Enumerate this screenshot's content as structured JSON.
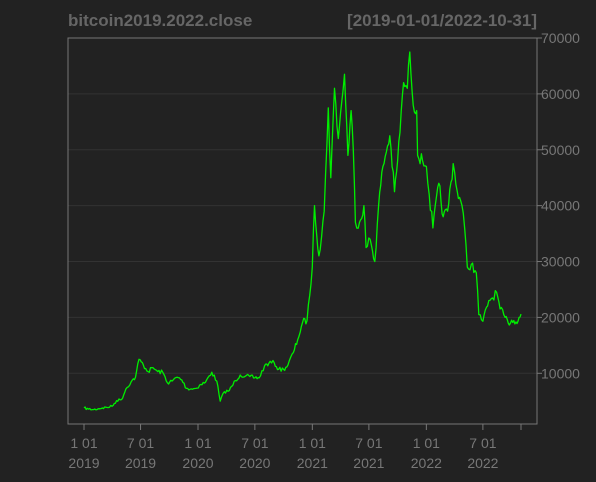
{
  "colors": {
    "background": "#222222",
    "series": "#00ee00",
    "axis": "#777777",
    "grid": "#333333",
    "title": "#666666"
  },
  "chart_data": {
    "type": "line",
    "title": "bitcoin2019.2022.close",
    "date_range": "[2019-01-01/2022-10-31]",
    "xlabel": "",
    "ylabel": "",
    "xlim": [
      "2019-01-01",
      "2022-10-31"
    ],
    "ylim": [
      2000,
      70000
    ],
    "y_axis_side": "right",
    "grid": true,
    "y_ticks": [
      {
        "value": 10000,
        "label": "10000"
      },
      {
        "value": 20000,
        "label": "20000"
      },
      {
        "value": 30000,
        "label": "30000"
      },
      {
        "value": 40000,
        "label": "40000"
      },
      {
        "value": 50000,
        "label": "50000"
      },
      {
        "value": 60000,
        "label": "60000"
      },
      {
        "value": 70000,
        "label": "70000"
      }
    ],
    "x_ticks": [
      {
        "date": "2019-01-01",
        "line1": "1 01",
        "line2": "2019"
      },
      {
        "date": "2019-07-01",
        "line1": "7 01",
        "line2": "2019"
      },
      {
        "date": "2020-01-01",
        "line1": "1 01",
        "line2": "2020"
      },
      {
        "date": "2020-07-01",
        "line1": "7 01",
        "line2": "2020"
      },
      {
        "date": "2021-01-01",
        "line1": "1 01",
        "line2": "2021"
      },
      {
        "date": "2021-07-01",
        "line1": "7 01",
        "line2": "2021"
      },
      {
        "date": "2022-01-01",
        "line1": "1 01",
        "line2": "2022"
      },
      {
        "date": "2022-07-01",
        "line1": "7 01",
        "line2": "2022"
      }
    ],
    "series": [
      {
        "x": [
          "2019-01-01",
          "2019-01-15",
          "2019-02-01",
          "2019-02-15",
          "2019-03-01",
          "2019-03-15",
          "2019-04-01",
          "2019-04-15",
          "2019-05-01",
          "2019-05-15",
          "2019-06-01",
          "2019-06-15",
          "2019-06-26",
          "2019-07-10",
          "2019-07-25",
          "2019-08-10",
          "2019-08-25",
          "2019-09-10",
          "2019-09-25",
          "2019-10-10",
          "2019-10-26",
          "2019-11-10",
          "2019-11-25",
          "2019-12-10",
          "2019-12-25",
          "2020-01-10",
          "2020-01-25",
          "2020-02-14",
          "2020-03-01",
          "2020-03-12",
          "2020-03-25",
          "2020-04-10",
          "2020-04-30",
          "2020-05-15",
          "2020-06-01",
          "2020-06-15",
          "2020-07-01",
          "2020-07-15",
          "2020-08-01",
          "2020-08-15",
          "2020-09-01",
          "2020-09-15",
          "2020-10-01",
          "2020-10-15",
          "2020-11-01",
          "2020-11-15",
          "2020-12-01",
          "2020-12-15",
          "2021-01-01",
          "2021-01-08",
          "2021-01-22",
          "2021-02-08",
          "2021-02-21",
          "2021-03-01",
          "2021-03-13",
          "2021-03-25",
          "2021-04-05",
          "2021-04-14",
          "2021-04-25",
          "2021-05-05",
          "2021-05-12",
          "2021-05-19",
          "2021-06-01",
          "2021-06-15",
          "2021-06-22",
          "2021-07-05",
          "2021-07-20",
          "2021-08-01",
          "2021-08-15",
          "2021-09-06",
          "2021-09-21",
          "2021-10-01",
          "2021-10-20",
          "2021-11-01",
          "2021-11-09",
          "2021-11-20",
          "2021-12-01",
          "2021-12-04",
          "2021-12-20",
          "2022-01-01",
          "2022-01-10",
          "2022-01-22",
          "2022-02-10",
          "2022-02-24",
          "2022-03-10",
          "2022-03-28",
          "2022-04-10",
          "2022-04-25",
          "2022-05-08",
          "2022-05-12",
          "2022-05-25",
          "2022-06-10",
          "2022-06-18",
          "2022-07-01",
          "2022-07-20",
          "2022-08-01",
          "2022-08-14",
          "2022-08-25",
          "2022-09-10",
          "2022-09-20",
          "2022-10-01",
          "2022-10-15",
          "2022-10-25",
          "2022-10-31"
        ],
        "y": [
          3800,
          3600,
          3500,
          3650,
          3800,
          3900,
          4100,
          5100,
          5300,
          7200,
          8500,
          9300,
          12500,
          11500,
          10300,
          11000,
          10300,
          10200,
          8300,
          8600,
          9300,
          8800,
          7300,
          7200,
          7300,
          8000,
          8400,
          10200,
          8600,
          5000,
          6700,
          6900,
          8700,
          9700,
          9500,
          9400,
          9200,
          9200,
          11300,
          11800,
          11900,
          10700,
          10700,
          11500,
          13700,
          16000,
          19200,
          19400,
          29000,
          40000,
          31000,
          39000,
          57500,
          45000,
          61000,
          52000,
          58500,
          63500,
          49000,
          57000,
          50000,
          37000,
          37000,
          40000,
          32500,
          34000,
          30000,
          40000,
          47000,
          52500,
          42500,
          48000,
          62000,
          61000,
          67500,
          58000,
          57000,
          49000,
          48000,
          47000,
          42000,
          36000,
          44000,
          38000,
          39000,
          47500,
          42500,
          40000,
          33000,
          29000,
          29500,
          28000,
          20500,
          19300,
          23000,
          23500,
          24500,
          21500,
          20000,
          19000,
          19500,
          19200,
          20000,
          20600
        ]
      }
    ]
  }
}
